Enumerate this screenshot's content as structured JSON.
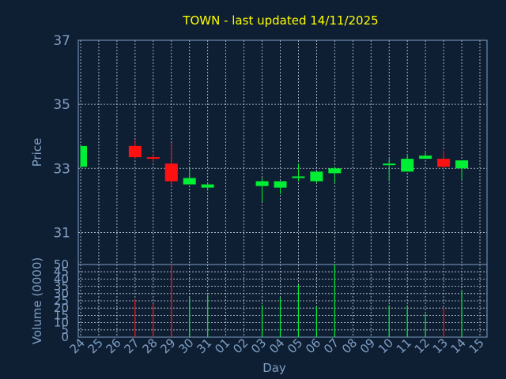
{
  "colors": {
    "background": "#0f1f33",
    "title": "#ffff00",
    "axis_text": "#7f9fc4",
    "frame": "#7f9fc4",
    "grid": "#c8d0dc",
    "up": "#00ee33",
    "down": "#ff1111"
  },
  "chart_data": {
    "type": "candlestick",
    "title": "TOWN - last updated 14/11/2025",
    "x_axis_label": "Day",
    "x_tick_labels": [
      "24",
      "25",
      "26",
      "27",
      "28",
      "29",
      "30",
      "31",
      "01",
      "02",
      "03",
      "04",
      "05",
      "06",
      "07",
      "08",
      "09",
      "10",
      "11",
      "12",
      "13",
      "14",
      "15"
    ],
    "grid": true,
    "price": {
      "y_axis_label": "Price",
      "y_range": [
        30,
        37
      ],
      "y_ticks": [
        "31",
        "33",
        "35",
        "37"
      ],
      "y_tick_values": [
        31,
        33,
        35,
        37
      ],
      "candles": [
        {
          "day": "24",
          "open": 33.05,
          "high": 33.7,
          "low": 33.05,
          "close": 33.7
        },
        {
          "day": "27",
          "open": 33.7,
          "high": 33.9,
          "low": 33.3,
          "close": 33.35
        },
        {
          "day": "28",
          "open": 33.35,
          "high": 33.45,
          "low": 33.2,
          "close": 33.3
        },
        {
          "day": "29",
          "open": 33.15,
          "high": 33.8,
          "low": 32.45,
          "close": 32.6
        },
        {
          "day": "30",
          "open": 32.5,
          "high": 33.0,
          "low": 32.5,
          "close": 32.7
        },
        {
          "day": "31",
          "open": 32.4,
          "high": 32.55,
          "low": 32.3,
          "close": 32.5
        },
        {
          "day": "03",
          "open": 32.45,
          "high": 32.7,
          "low": 31.95,
          "close": 32.6
        },
        {
          "day": "04",
          "open": 32.4,
          "high": 32.6,
          "low": 32.2,
          "close": 32.6
        },
        {
          "day": "05",
          "open": 32.7,
          "high": 33.15,
          "low": 32.6,
          "close": 32.75
        },
        {
          "day": "06",
          "open": 32.6,
          "high": 32.9,
          "low": 32.55,
          "close": 32.9
        },
        {
          "day": "07",
          "open": 32.85,
          "high": 33.05,
          "low": 32.55,
          "close": 33.0
        },
        {
          "day": "10",
          "open": 33.1,
          "high": 33.3,
          "low": 32.6,
          "close": 33.15
        },
        {
          "day": "11",
          "open": 32.9,
          "high": 33.45,
          "low": 32.9,
          "close": 33.3
        },
        {
          "day": "12",
          "open": 33.3,
          "high": 33.5,
          "low": 33.3,
          "close": 33.4
        },
        {
          "day": "13",
          "open": 33.3,
          "high": 33.55,
          "low": 33.0,
          "close": 33.05
        },
        {
          "day": "14",
          "open": 33.0,
          "high": 33.25,
          "low": 32.65,
          "close": 33.25
        }
      ]
    },
    "volume": {
      "y_axis_label": "Volume (0000)",
      "y_range": [
        0,
        50
      ],
      "y_ticks": [
        "0",
        "5",
        "10",
        "15",
        "20",
        "25",
        "30",
        "35",
        "40",
        "45",
        "50"
      ],
      "y_tick_values": [
        0,
        5,
        10,
        15,
        20,
        25,
        30,
        35,
        40,
        45,
        50
      ],
      "bars": [
        {
          "day": "27",
          "value": 26
        },
        {
          "day": "28",
          "value": 23
        },
        {
          "day": "29",
          "value": 50
        },
        {
          "day": "30",
          "value": 27
        },
        {
          "day": "31",
          "value": 29
        },
        {
          "day": "03",
          "value": 22
        },
        {
          "day": "04",
          "value": 27
        },
        {
          "day": "05",
          "value": 36
        },
        {
          "day": "06",
          "value": 21
        },
        {
          "day": "07",
          "value": 50
        },
        {
          "day": "10",
          "value": 22
        },
        {
          "day": "11",
          "value": 22
        },
        {
          "day": "12",
          "value": 16
        },
        {
          "day": "13",
          "value": 20
        },
        {
          "day": "14",
          "value": 32
        }
      ]
    }
  }
}
